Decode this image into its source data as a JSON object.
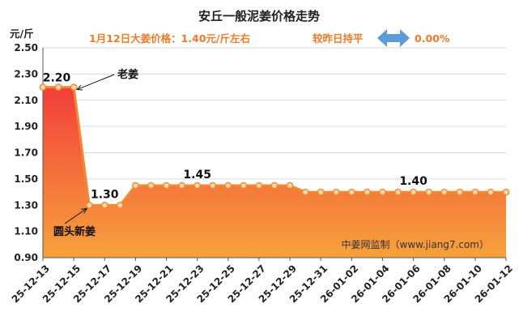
{
  "header": {
    "title": "安丘一般泥姜价格走势",
    "subtitle_price": "1月12日大姜价格：1.40元/斤左右",
    "subtitle_trend": "较昨日持平",
    "subtitle_change": "0.00%"
  },
  "watermark": "中姜网监制（www.jiang7.com）",
  "colors": {
    "line": "#f08a33",
    "fill_top": "#f23e3a",
    "fill_bottom": "#f7a23c",
    "marker_fill": "#ffd8a4",
    "arrow": "#5c9bd6",
    "accent_text": "#ee7a2a"
  },
  "chart_data": {
    "type": "area",
    "title": "安丘一般泥姜价格走势",
    "ylabel": "元/斤",
    "ylim": [
      0.9,
      2.5
    ],
    "y_ticks": [
      "0.90",
      "1.10",
      "1.30",
      "1.50",
      "1.70",
      "1.90",
      "2.10",
      "2.30",
      "2.50"
    ],
    "x": [
      "25-12-13",
      "25-12-14",
      "25-12-15",
      "25-12-16",
      "25-12-17",
      "25-12-18",
      "25-12-19",
      "25-12-20",
      "25-12-21",
      "25-12-22",
      "25-12-23",
      "25-12-24",
      "25-12-25",
      "25-12-26",
      "25-12-27",
      "25-12-28",
      "25-12-29",
      "25-12-30",
      "25-12-31",
      "26-01-01",
      "26-01-02",
      "26-01-03",
      "26-01-04",
      "26-01-05",
      "26-01-06",
      "26-01-07",
      "26-01-08",
      "26-01-09",
      "26-01-10",
      "26-01-11",
      "26-01-12"
    ],
    "x_tick_labels": [
      "25-12-13",
      "25-12-15",
      "25-12-17",
      "25-12-19",
      "25-12-21",
      "25-12-23",
      "25-12-25",
      "25-12-27",
      "25-12-29",
      "25-12-31",
      "26-01-02",
      "26-01-04",
      "26-01-06",
      "26-01-08",
      "26-01-10",
      "26-01-12"
    ],
    "values": [
      2.2,
      2.2,
      2.2,
      1.3,
      1.3,
      1.3,
      1.45,
      1.45,
      1.45,
      1.45,
      1.45,
      1.45,
      1.45,
      1.45,
      1.45,
      1.45,
      1.45,
      1.4,
      1.4,
      1.4,
      1.4,
      1.4,
      1.4,
      1.4,
      1.4,
      1.4,
      1.4,
      1.4,
      1.4,
      1.4,
      1.4
    ],
    "data_labels": [
      {
        "index": 0,
        "text": "2.20"
      },
      {
        "index": 4,
        "text": "1.30"
      },
      {
        "index": 10,
        "text": "1.45"
      },
      {
        "index": 24,
        "text": "1.40"
      }
    ],
    "annotations": [
      {
        "text": "老姜",
        "index": 2
      },
      {
        "text": "圆头新姜",
        "index": 3
      }
    ],
    "grid": true
  }
}
